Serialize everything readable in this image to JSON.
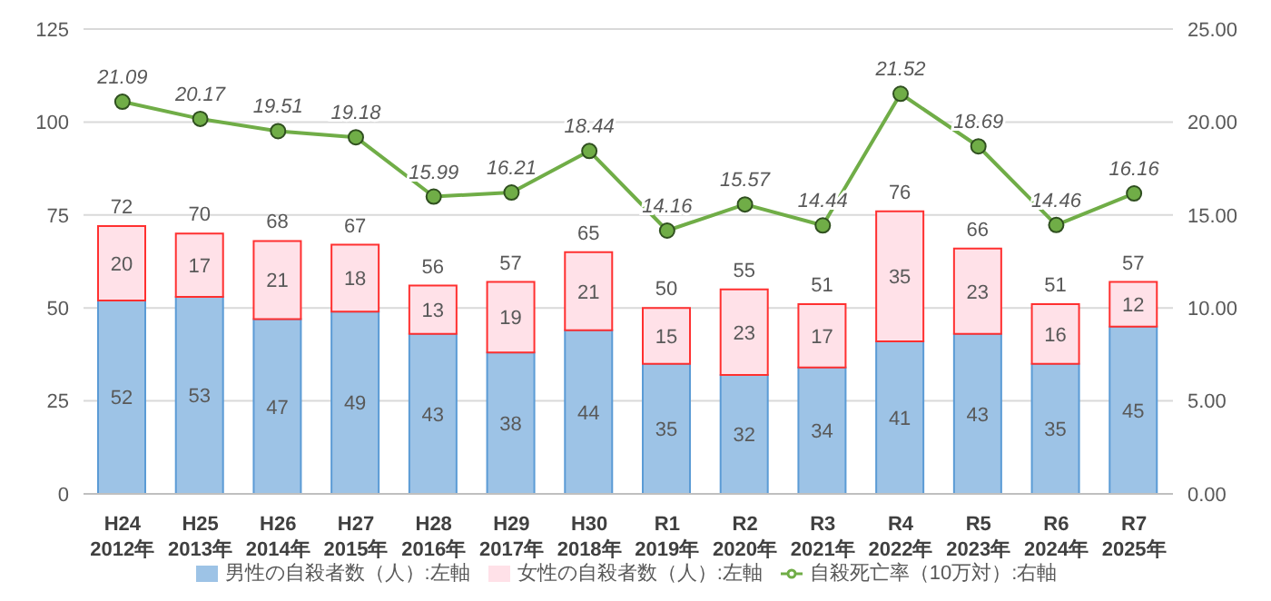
{
  "chart_data": {
    "type": "bar",
    "stacked": true,
    "categories": [
      "H24\n2012年",
      "H25\n2013年",
      "H26\n2014年",
      "H27\n2015年",
      "H28\n2016年",
      "H29\n2017年",
      "H30\n2018年",
      "R1\n2019年",
      "R2\n2020年",
      "R3\n2021年",
      "R4\n2022年",
      "R5\n2023年",
      "R6\n2024年",
      "R7\n2025年"
    ],
    "series": [
      {
        "name": "男性の自殺者数（人）:左軸",
        "color": "#9dc3e6",
        "values": [
          52,
          53,
          47,
          49,
          43,
          38,
          44,
          35,
          32,
          34,
          41,
          43,
          35,
          45
        ]
      },
      {
        "name": "女性の自殺者数（人）:左軸",
        "color": "#ffe1e8",
        "values": [
          20,
          17,
          21,
          18,
          13,
          19,
          21,
          15,
          23,
          17,
          35,
          23,
          16,
          12
        ]
      },
      {
        "name": "自殺死亡率（10万対）:右軸",
        "type": "line",
        "axis": "y2",
        "color": "#70ad47",
        "marker": "circle",
        "values": [
          21.09,
          20.17,
          19.51,
          19.18,
          15.99,
          16.21,
          18.44,
          14.16,
          15.57,
          14.44,
          21.52,
          18.69,
          14.46,
          16.16
        ]
      }
    ],
    "totals": [
      "72",
      "70",
      "68",
      "67",
      "56",
      "57",
      "65",
      "50",
      "55",
      "51",
      "76",
      "66",
      "51",
      "57"
    ],
    "data_labels": true,
    "ylim": [
      0,
      125
    ],
    "yticks": [
      0,
      25,
      50,
      75,
      100,
      125
    ],
    "y2lim": [
      0,
      25
    ],
    "y2ticks": [
      {
        "value": 0,
        "label": "0.00"
      },
      {
        "value": 5,
        "label": "5.00"
      },
      {
        "value": 10,
        "label": "10.00"
      },
      {
        "value": 15,
        "label": "15.00"
      },
      {
        "value": 20,
        "label": "20.00"
      },
      {
        "value": 25,
        "label": "25.00"
      }
    ],
    "grid": "y",
    "legend": "bottom"
  }
}
